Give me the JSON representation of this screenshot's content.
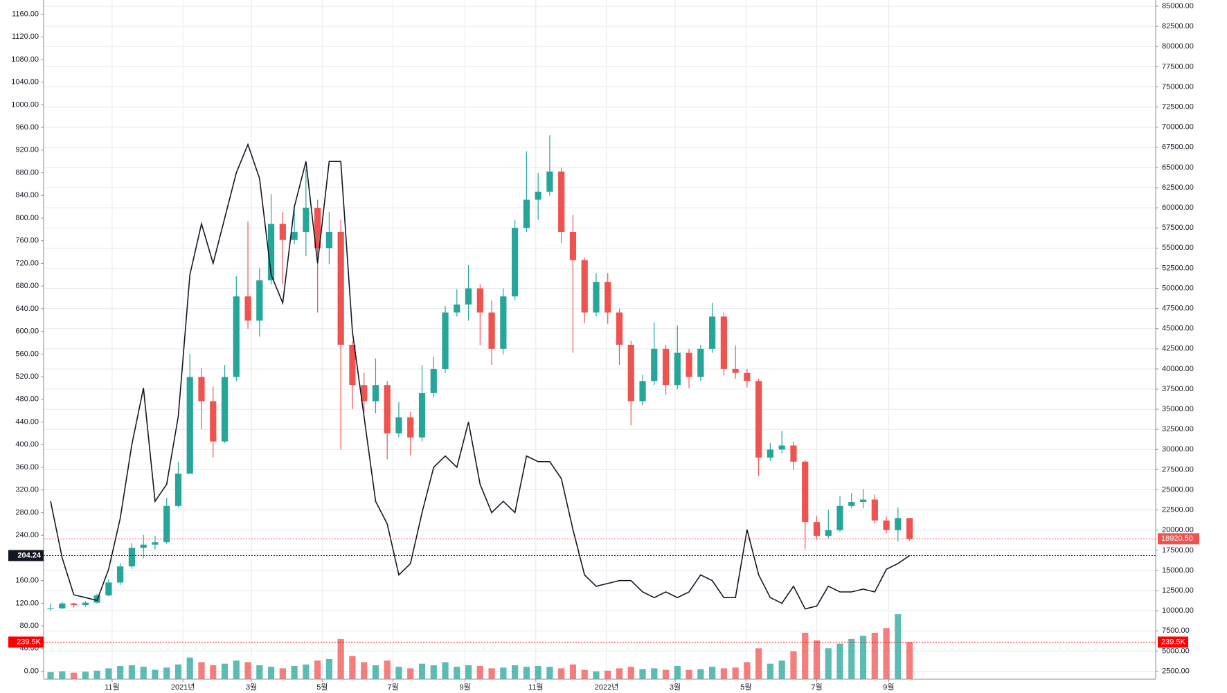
{
  "chart_data": {
    "type": "candlestick",
    "grid": true,
    "xlim": [
      -0.6,
      95.2
    ],
    "xticks": [
      {
        "value": 5.3,
        "label": "11월"
      },
      {
        "value": 11.4,
        "label": "2021년"
      },
      {
        "value": 17.3,
        "label": "3월"
      },
      {
        "value": 23.4,
        "label": "5월"
      },
      {
        "value": 29.5,
        "label": "7월"
      },
      {
        "value": 35.7,
        "label": "9월"
      },
      {
        "value": 41.8,
        "label": "11월"
      },
      {
        "value": 47.9,
        "label": "2022년"
      },
      {
        "value": 53.8,
        "label": "3월"
      },
      {
        "value": 59.9,
        "label": "5월"
      },
      {
        "value": 66.0,
        "label": "7월"
      },
      {
        "value": 72.2,
        "label": "9월"
      }
    ],
    "ylim": [
      -14,
      1185
    ],
    "yticks": [
      {
        "value": 0,
        "label": "0.00"
      },
      {
        "value": 40,
        "label": "40.00"
      },
      {
        "value": 80,
        "label": "80.00"
      },
      {
        "value": 120,
        "label": "120.00"
      },
      {
        "value": 160,
        "label": "160.00"
      },
      {
        "value": 200,
        "label": "200.00"
      },
      {
        "value": 240,
        "label": "240.00"
      },
      {
        "value": 280,
        "label": "280.00"
      },
      {
        "value": 320,
        "label": "320.00"
      },
      {
        "value": 360,
        "label": "360.00"
      },
      {
        "value": 400,
        "label": "400.00"
      },
      {
        "value": 440,
        "label": "440.00"
      },
      {
        "value": 480,
        "label": "480.00"
      },
      {
        "value": 520,
        "label": "520.00"
      },
      {
        "value": 560,
        "label": "560.00"
      },
      {
        "value": 600,
        "label": "600.00"
      },
      {
        "value": 640,
        "label": "640.00"
      },
      {
        "value": 680,
        "label": "680.00"
      },
      {
        "value": 720,
        "label": "720.00"
      },
      {
        "value": 760,
        "label": "760.00"
      },
      {
        "value": 800,
        "label": "800.00"
      },
      {
        "value": 840,
        "label": "840.00"
      },
      {
        "value": 880,
        "label": "880.00"
      },
      {
        "value": 920,
        "label": "920.00"
      },
      {
        "value": 960,
        "label": "960.00"
      },
      {
        "value": 1000,
        "label": "1000.00"
      },
      {
        "value": 1040,
        "label": "1040.00"
      },
      {
        "value": 1080,
        "label": "1080.00"
      },
      {
        "value": 1120,
        "label": "1120.00"
      },
      {
        "value": 1160,
        "label": "1160.00"
      }
    ],
    "y2lim": [
      1510,
      85780
    ],
    "y2ticks": [
      {
        "value": 2500,
        "label": "2500.00"
      },
      {
        "value": 5000,
        "label": "5000.00"
      },
      {
        "value": 7500,
        "label": "7500.00"
      },
      {
        "value": 10000,
        "label": "10000.00"
      },
      {
        "value": 12500,
        "label": "12500.00"
      },
      {
        "value": 15000,
        "label": "15000.00"
      },
      {
        "value": 17500,
        "label": "17500.00"
      },
      {
        "value": 20000,
        "label": "20000.00"
      },
      {
        "value": 22500,
        "label": "22500.00"
      },
      {
        "value": 25000,
        "label": "25000.00"
      },
      {
        "value": 27500,
        "label": "27500.00"
      },
      {
        "value": 30000,
        "label": "30000.00"
      },
      {
        "value": 32500,
        "label": "32500.00"
      },
      {
        "value": 35000,
        "label": "35000.00"
      },
      {
        "value": 37500,
        "label": "37500.00"
      },
      {
        "value": 40000,
        "label": "40000.00"
      },
      {
        "value": 42500,
        "label": "42500.00"
      },
      {
        "value": 45000,
        "label": "45000.00"
      },
      {
        "value": 47500,
        "label": "47500.00"
      },
      {
        "value": 50000,
        "label": "50000.00"
      },
      {
        "value": 52500,
        "label": "52500.00"
      },
      {
        "value": 55000,
        "label": "55000.00"
      },
      {
        "value": 57500,
        "label": "57500.00"
      },
      {
        "value": 60000,
        "label": "60000.00"
      },
      {
        "value": 62500,
        "label": "62500.00"
      },
      {
        "value": 65000,
        "label": "65000.00"
      },
      {
        "value": 67500,
        "label": "67500.00"
      },
      {
        "value": 70000,
        "label": "70000.00"
      },
      {
        "value": 72500,
        "label": "72500.00"
      },
      {
        "value": 75000,
        "label": "75000.00"
      },
      {
        "value": 77500,
        "label": "77500.00"
      },
      {
        "value": 80000,
        "label": "80000.00"
      },
      {
        "value": 82500,
        "label": "82500.00"
      },
      {
        "value": 85000,
        "label": "85000.00"
      }
    ],
    "ohlc": {
      "axis": "y2",
      "up_color": "#26a69a",
      "down_color": "#ef5350",
      "open": [
        10200,
        10300,
        10900,
        10700,
        11000,
        11900,
        13500,
        15500,
        17800,
        18200,
        18500,
        23000,
        27000,
        39000,
        36000,
        31000,
        39000,
        49000,
        46000,
        51000,
        58000,
        56000,
        57000,
        60000,
        55000,
        57000,
        43000,
        38000,
        36000,
        38000,
        32000,
        34000,
        31500,
        37000,
        40000,
        47000,
        48000,
        50000,
        47000,
        42500,
        49000,
        57500,
        61000,
        62000,
        64500,
        57000,
        53500,
        47000,
        50800,
        47000,
        43000,
        36000,
        38500,
        42500,
        38000,
        42000,
        39000,
        42500,
        46500,
        40000,
        39500,
        38500,
        29000,
        30000,
        30500,
        28500,
        21000,
        19300,
        20000,
        23000,
        23500,
        23800,
        21200,
        20000,
        21500
      ],
      "high": [
        10900,
        11100,
        11000,
        11200,
        12100,
        13900,
        15900,
        18400,
        19400,
        19300,
        24000,
        28500,
        41900,
        40100,
        37800,
        40500,
        51500,
        58300,
        52500,
        61700,
        59500,
        59800,
        64800,
        61000,
        59500,
        58500,
        43500,
        39500,
        41300,
        38500,
        35900,
        34700,
        40500,
        41500,
        47800,
        49900,
        52900,
        50500,
        48500,
        50000,
        58500,
        67000,
        64300,
        69000,
        65000,
        59100,
        53800,
        51900,
        51900,
        47500,
        43500,
        39300,
        45800,
        43000,
        45400,
        42500,
        43000,
        48200,
        47000,
        42900,
        40000,
        38800,
        30800,
        32300,
        31000,
        28700,
        21800,
        22500,
        24200,
        24600,
        25100,
        24400,
        21700,
        22800,
        21500
      ],
      "low": [
        10000,
        10200,
        10400,
        10500,
        10900,
        11800,
        13200,
        15200,
        16500,
        17600,
        18300,
        22800,
        27000,
        32500,
        29000,
        30800,
        38500,
        45000,
        44000,
        50500,
        50500,
        55500,
        54000,
        47000,
        53000,
        30000,
        35000,
        34500,
        34500,
        28800,
        31500,
        29300,
        31000,
        36500,
        39500,
        46500,
        46000,
        43000,
        40500,
        41800,
        48500,
        57000,
        58500,
        61500,
        55600,
        42000,
        45700,
        46500,
        45600,
        40500,
        33000,
        35500,
        38000,
        36800,
        37500,
        37600,
        38500,
        42000,
        39200,
        38800,
        37700,
        26700,
        28600,
        29500,
        27500,
        17600,
        18800,
        19000,
        19800,
        22700,
        22700,
        20800,
        19600,
        18600,
        18700
      ],
      "close": [
        10300,
        10900,
        10700,
        11000,
        11900,
        13500,
        15500,
        17800,
        18200,
        18500,
        23000,
        27000,
        39000,
        36000,
        31000,
        39000,
        49000,
        46000,
        51000,
        58000,
        56000,
        57000,
        60000,
        55000,
        57000,
        43000,
        38000,
        36000,
        38000,
        32000,
        34000,
        31500,
        37000,
        40000,
        47000,
        48000,
        50000,
        47000,
        42500,
        49000,
        57500,
        61000,
        62000,
        64500,
        57000,
        53500,
        47000,
        50800,
        47000,
        43000,
        36000,
        38500,
        42500,
        38000,
        42000,
        39000,
        42500,
        46500,
        40000,
        39500,
        38500,
        29000,
        30000,
        30500,
        28500,
        21000,
        19300,
        20000,
        23000,
        23500,
        23800,
        21200,
        20000,
        21500,
        18920.5
      ],
      "value_labels": [
        null,
        null,
        null,
        null,
        null,
        null,
        null,
        null,
        null,
        null,
        null,
        null,
        null,
        null,
        null,
        null,
        null,
        null,
        null,
        null,
        null,
        null,
        null,
        null,
        null,
        null,
        null,
        null,
        null,
        null,
        null,
        null,
        null,
        null,
        null,
        null,
        null,
        null,
        null,
        null,
        null,
        null,
        null,
        null,
        null,
        null,
        null,
        null,
        null,
        null,
        null,
        null,
        null,
        null,
        null,
        null,
        null,
        null,
        null,
        null,
        null,
        null,
        null,
        null,
        null,
        null,
        null,
        null,
        null,
        null,
        null,
        null,
        null,
        null,
        "18920.50"
      ]
    },
    "series": [
      {
        "color": "#131722",
        "values": [
          300,
          200,
          135,
          130,
          125,
          180,
          270,
          400,
          500,
          300,
          330,
          450,
          700,
          790,
          720,
          800,
          880,
          930,
          870,
          700,
          650,
          820,
          900,
          720,
          900,
          900,
          600,
          450,
          300,
          260,
          170,
          190,
          280,
          360,
          380,
          360,
          440,
          330,
          280,
          300,
          280,
          380,
          370,
          370,
          340,
          250,
          170,
          150,
          155,
          160,
          160,
          140,
          130,
          140,
          130,
          140,
          170,
          160,
          130,
          130,
          250,
          170,
          130,
          120,
          150,
          110,
          115,
          150,
          140,
          140,
          145,
          140,
          180,
          190,
          204.24
        ]
      }
    ],
    "volume": {
      "vlim": [
        0,
        4390000
      ],
      "values": [
        45000,
        50000,
        42000,
        48000,
        55000,
        70000,
        85000,
        90000,
        80000,
        60000,
        75000,
        95000,
        140000,
        110000,
        90000,
        100000,
        120000,
        110000,
        90000,
        80000,
        70000,
        85000,
        95000,
        120000,
        130000,
        260000,
        150000,
        110000,
        90000,
        120000,
        80000,
        70000,
        100000,
        90000,
        110000,
        80000,
        90000,
        85000,
        70000,
        75000,
        90000,
        80000,
        85000,
        80000,
        70000,
        95000,
        60000,
        50000,
        55000,
        70000,
        80000,
        65000,
        70000,
        60000,
        85000,
        60000,
        65000,
        80000,
        70000,
        75000,
        110000,
        200000,
        100000,
        120000,
        180000,
        300000,
        250000,
        200000,
        230000,
        260000,
        280000,
        300000,
        330000,
        420000,
        239500
      ],
      "value_labels": [
        null,
        null,
        null,
        null,
        null,
        null,
        null,
        null,
        null,
        null,
        null,
        null,
        null,
        null,
        null,
        null,
        null,
        null,
        null,
        null,
        null,
        null,
        null,
        null,
        null,
        null,
        null,
        null,
        null,
        null,
        null,
        null,
        null,
        null,
        null,
        null,
        null,
        null,
        null,
        null,
        null,
        null,
        null,
        null,
        null,
        null,
        null,
        null,
        null,
        null,
        null,
        null,
        null,
        null,
        null,
        null,
        null,
        null,
        null,
        null,
        null,
        null,
        null,
        null,
        null,
        null,
        null,
        null,
        null,
        null,
        null,
        null,
        null,
        null,
        "239.5K"
      ]
    }
  }
}
